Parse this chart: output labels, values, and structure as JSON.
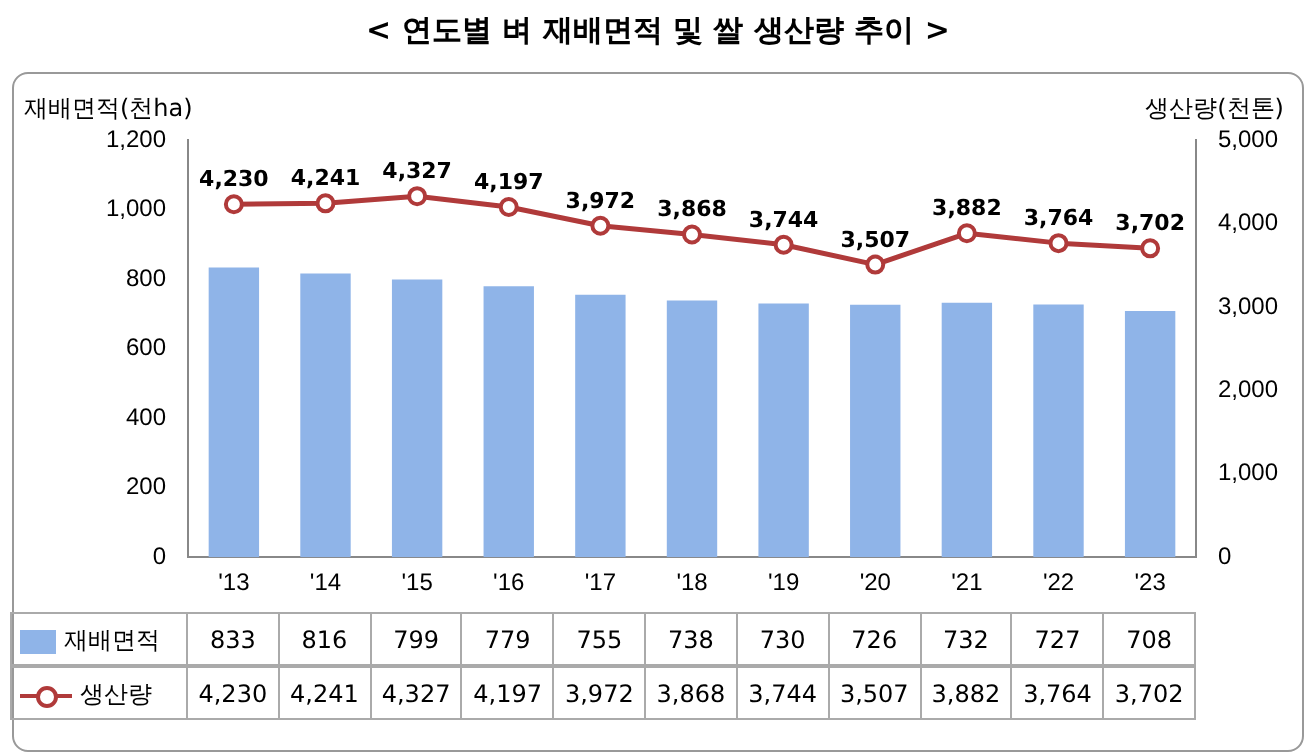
{
  "chart_data": {
    "type": "bar",
    "title": "< 연도별 벼 재배면적 및 쌀 생산량 추이 >",
    "ylabel": "재배면적(천ha)",
    "y2label": "생산량(천톤)",
    "categories": [
      "'13",
      "'14",
      "'15",
      "'16",
      "'17",
      "'18",
      "'19",
      "'20",
      "'21",
      "'22",
      "'23"
    ],
    "series": [
      {
        "name": "재배면적",
        "color": "#8fb4e8",
        "values": [
          833,
          816,
          799,
          779,
          755,
          738,
          730,
          726,
          732,
          727,
          708
        ],
        "value_labels": [
          "833",
          "816",
          "799",
          "779",
          "755",
          "738",
          "730",
          "726",
          "732",
          "727",
          "708"
        ]
      },
      {
        "name": "생산량",
        "type": "line",
        "axis": "y2",
        "color": "#b03a3a",
        "marker": "circle",
        "values": [
          4230,
          4241,
          4327,
          4197,
          3972,
          3868,
          3744,
          3507,
          3882,
          3764,
          3702
        ],
        "value_labels": [
          "4,230",
          "4,241",
          "4,327",
          "4,197",
          "3,972",
          "3,868",
          "3,744",
          "3,507",
          "3,882",
          "3,764",
          "3,702"
        ]
      }
    ],
    "ylim": [
      0,
      1200
    ],
    "yticks": [
      0,
      200,
      400,
      600,
      800,
      {
        "value": 1000,
        "label": "1,000"
      },
      {
        "value": 1200,
        "label": "1,200"
      }
    ],
    "y2lim": [
      0,
      5000
    ],
    "y2ticks": [
      0,
      {
        "value": 1000,
        "label": "1,000"
      },
      {
        "value": 2000,
        "label": "2,000"
      },
      {
        "value": 3000,
        "label": "3,000"
      },
      {
        "value": 4000,
        "label": "4,000"
      },
      {
        "value": 5000,
        "label": "5,000"
      }
    ],
    "grid": false,
    "legend": "bottom"
  }
}
